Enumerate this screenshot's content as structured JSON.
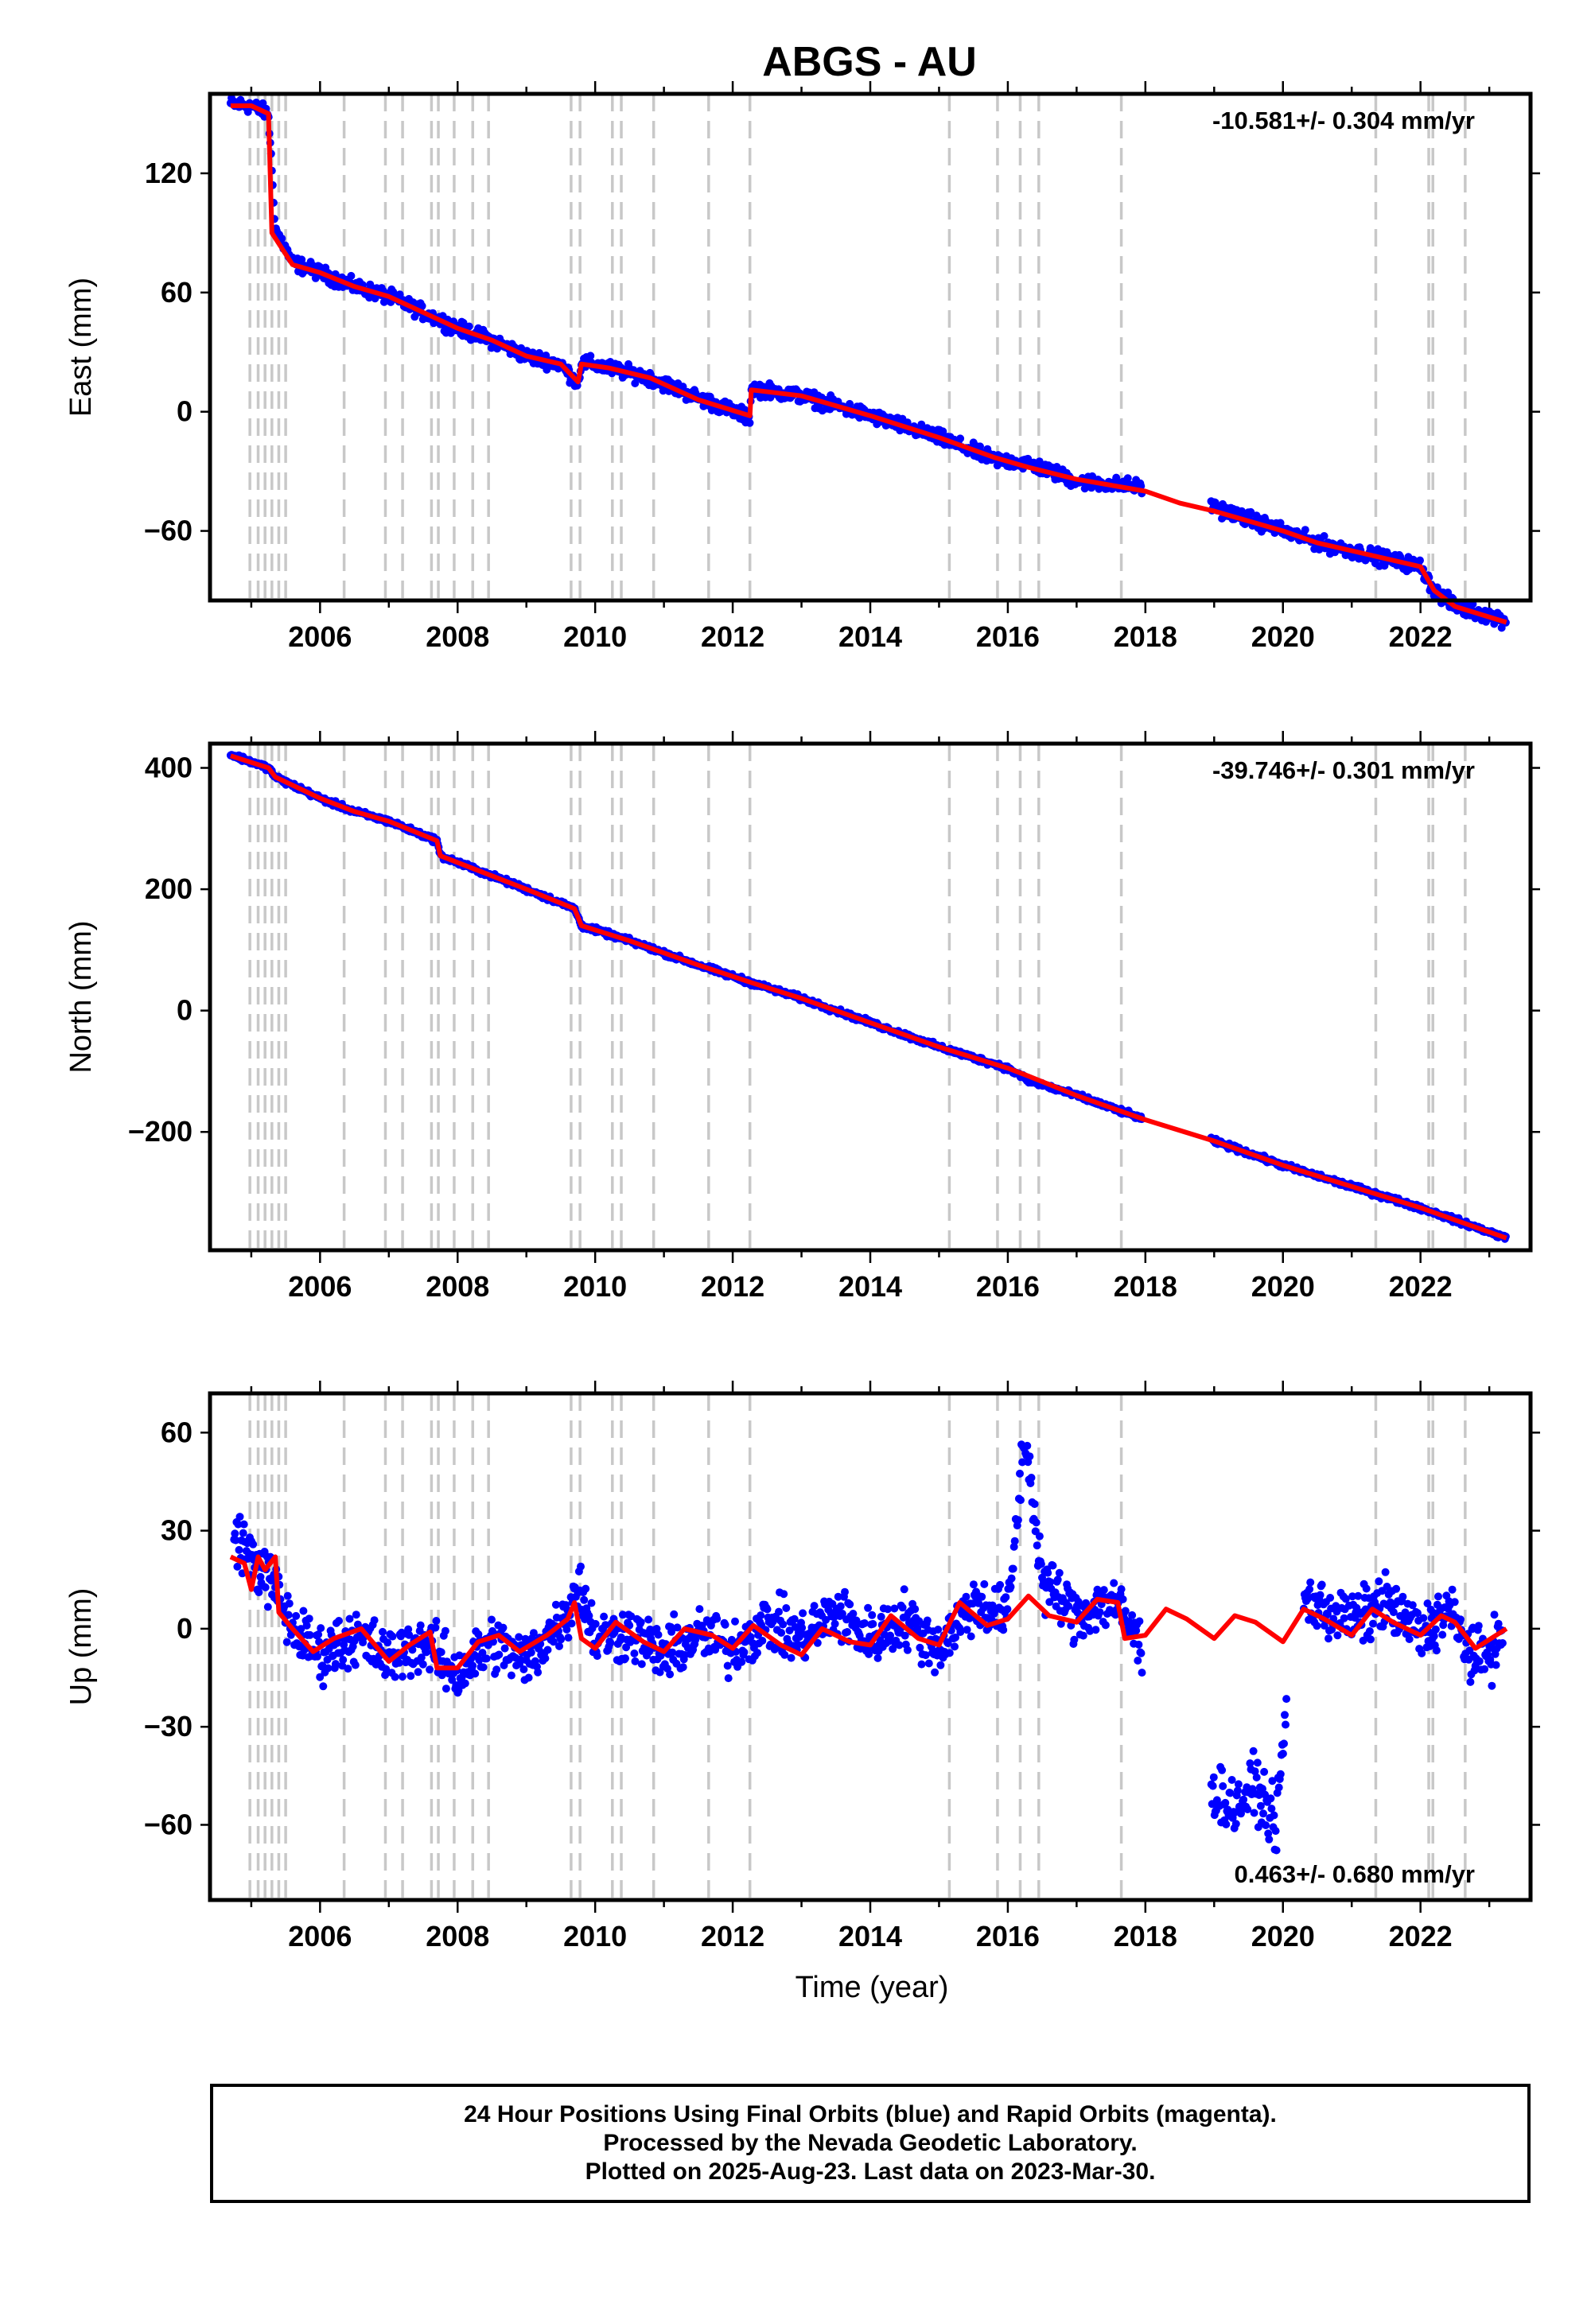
{
  "title": "ABGS - AU",
  "chart_data": [
    {
      "type": "scatter",
      "panel": "east",
      "ylabel": "East (mm)",
      "xlabel": "",
      "xlim": [
        2004.4,
        2023.6
      ],
      "ylim": [
        -95,
        160
      ],
      "yticks": [
        120,
        60,
        0,
        -60
      ],
      "xticks": [
        2006,
        2008,
        2010,
        2012,
        2014,
        2016,
        2018,
        2020,
        2022
      ],
      "rate_label": "-10.581+/- 0.304 mm/yr",
      "rate_position": "top-right",
      "series": [
        {
          "name": "daily positions",
          "color": "#0000ff",
          "x": [
            2004.7,
            2005.0,
            2005.25,
            2005.35,
            2005.6,
            2006.0,
            2006.5,
            2007.0,
            2007.5,
            2008.0,
            2008.5,
            2009.0,
            2009.5,
            2009.75,
            2009.8,
            2010.2,
            2010.8,
            2011.5,
            2012.25,
            2012.27,
            2013.0,
            2014.0,
            2015.0,
            2015.8,
            2016.3,
            2017.0,
            2018.0,
            2019.0,
            2020.0,
            2020.5,
            2021.0,
            2022.0,
            2022.2,
            2022.5,
            2023.25
          ],
          "y": [
            155,
            154,
            150,
            92,
            75,
            70,
            63,
            58,
            50,
            42,
            36,
            28,
            24,
            14,
            25,
            22,
            17,
            7,
            -3,
            12,
            8,
            -2,
            -13,
            -24,
            -26,
            -35,
            -38,
            -48,
            -60,
            -66,
            -70,
            -78,
            -90,
            -98,
            -105
          ]
        },
        {
          "name": "model",
          "color": "#ff0000",
          "x": [
            2004.7,
            2005.0,
            2005.25,
            2005.3,
            2005.6,
            2006.0,
            2006.5,
            2007.0,
            2007.5,
            2008.0,
            2008.5,
            2009.0,
            2009.5,
            2009.75,
            2009.8,
            2010.2,
            2010.8,
            2011.5,
            2012.25,
            2012.27,
            2013.0,
            2014.0,
            2015.0,
            2015.8,
            2016.3,
            2017.0,
            2018.0,
            2018.5,
            2019.0,
            2020.0,
            2020.5,
            2021.0,
            2022.0,
            2022.2,
            2022.5,
            2023.25
          ],
          "y": [
            154,
            154,
            150,
            90,
            74,
            70,
            63,
            58,
            50,
            42,
            36,
            28,
            24,
            15,
            24,
            22,
            17,
            6,
            -2,
            11,
            8,
            -2,
            -13,
            -23,
            -28,
            -34,
            -40,
            -46,
            -50,
            -60,
            -66,
            -70,
            -78,
            -90,
            -98,
            -106
          ]
        }
      ]
    },
    {
      "type": "scatter",
      "panel": "north",
      "ylabel": "North (mm)",
      "xlabel": "",
      "xlim": [
        2004.4,
        2023.6
      ],
      "ylim": [
        -395,
        440
      ],
      "yticks": [
        400,
        200,
        0,
        -200
      ],
      "xticks": [
        2006,
        2008,
        2010,
        2012,
        2014,
        2016,
        2018,
        2020,
        2022
      ],
      "rate_label": "-39.746+/- 0.301 mm/yr",
      "rate_position": "top-right",
      "series": [
        {
          "name": "daily positions",
          "color": "#0000ff",
          "x": [
            2004.7,
            2005.25,
            2005.35,
            2006.0,
            2006.5,
            2007.0,
            2007.7,
            2007.75,
            2008.5,
            2009.0,
            2009.7,
            2009.8,
            2010.5,
            2011.5,
            2012.3,
            2013.0,
            2014.0,
            2015.0,
            2016.0,
            2016.3,
            2017.0,
            2018.0,
            2019.0,
            2020.0,
            2021.0,
            2022.0,
            2022.5,
            2023.25
          ],
          "y": [
            422,
            400,
            385,
            350,
            328,
            312,
            280,
            255,
            222,
            200,
            168,
            140,
            115,
            75,
            45,
            20,
            -20,
            -60,
            -95,
            -115,
            -140,
            -180,
            -215,
            -255,
            -290,
            -325,
            -345,
            -375
          ]
        },
        {
          "name": "model",
          "color": "#ff0000",
          "x": [
            2004.7,
            2005.25,
            2005.35,
            2006.0,
            2006.5,
            2007.0,
            2007.7,
            2007.75,
            2008.5,
            2009.0,
            2009.7,
            2009.8,
            2010.5,
            2011.5,
            2012.3,
            2013.0,
            2014.0,
            2015.0,
            2016.0,
            2016.3,
            2017.0,
            2018.0,
            2019.0,
            2020.0,
            2021.0,
            2022.0,
            2022.5,
            2023.25
          ],
          "y": [
            420,
            400,
            385,
            350,
            328,
            312,
            280,
            255,
            222,
            200,
            168,
            140,
            115,
            75,
            45,
            20,
            -20,
            -60,
            -95,
            -108,
            -140,
            -180,
            -215,
            -255,
            -290,
            -325,
            -345,
            -375
          ]
        }
      ]
    },
    {
      "type": "scatter",
      "panel": "up",
      "ylabel": "Up (mm)",
      "xlabel": "Time (year)",
      "xlim": [
        2004.4,
        2023.6
      ],
      "ylim": [
        -83,
        72
      ],
      "yticks": [
        60,
        30,
        0,
        -30,
        -60
      ],
      "xticks": [
        2006,
        2008,
        2010,
        2012,
        2014,
        2016,
        2018,
        2020,
        2022
      ],
      "rate_label": "0.463+/- 0.680 mm/yr",
      "rate_position": "bottom-right",
      "series": [
        {
          "name": "daily positions",
          "color": "#0000ff",
          "x": [
            2004.75,
            2005.0,
            2005.3,
            2005.6,
            2006.0,
            2006.5,
            2007.0,
            2007.5,
            2008.0,
            2008.5,
            2009.0,
            2009.6,
            2009.75,
            2010.0,
            2010.5,
            2011.0,
            2011.5,
            2012.0,
            2012.5,
            2013.0,
            2013.5,
            2014.0,
            2014.5,
            2015.0,
            2015.5,
            2016.0,
            2016.25,
            2016.5,
            2017.0,
            2017.5,
            2017.8,
            2019.0,
            2019.3,
            2019.6,
            2019.9,
            2020.2,
            2020.6,
            2021.0,
            2021.5,
            2022.0,
            2022.4,
            2022.8,
            2023.2
          ],
          "y": [
            30,
            22,
            14,
            0,
            -8,
            -2,
            -9,
            -4,
            -14,
            -4,
            -10,
            5,
            15,
            -3,
            -1,
            -8,
            -2,
            -6,
            2,
            -3,
            5,
            -3,
            3,
            -6,
            8,
            4,
            60,
            15,
            4,
            9,
            0,
            -50,
            -55,
            -48,
            -60,
            10,
            6,
            2,
            8,
            -2,
            6,
            -10,
            -3
          ]
        },
        {
          "name": "model",
          "color": "#ff0000",
          "x": [
            2004.7,
            2004.9,
            2005.0,
            2005.1,
            2005.2,
            2005.35,
            2005.4,
            2005.6,
            2005.9,
            2006.2,
            2006.6,
            2007.0,
            2007.3,
            2007.6,
            2007.7,
            2008.0,
            2008.3,
            2008.6,
            2008.9,
            2009.3,
            2009.6,
            2009.7,
            2009.8,
            2010.0,
            2010.3,
            2010.7,
            2011.0,
            2011.3,
            2011.7,
            2012.0,
            2012.3,
            2012.7,
            2013.0,
            2013.3,
            2013.7,
            2014.0,
            2014.3,
            2014.7,
            2015.0,
            2015.3,
            2015.7,
            2016.0,
            2016.3,
            2016.6,
            2017.0,
            2017.3,
            2017.6,
            2017.7,
            2018.0,
            2018.3,
            2018.6,
            2019.0,
            2019.3,
            2019.6,
            2020.0,
            2020.3,
            2020.6,
            2021.0,
            2021.3,
            2021.6,
            2022.0,
            2022.2,
            2022.3,
            2022.5,
            2022.8,
            2023.25
          ],
          "y": [
            22,
            20,
            12,
            22,
            18,
            22,
            5,
            0,
            -7,
            -3,
            0,
            -10,
            -5,
            -1,
            -12,
            -12,
            -4,
            -2,
            -7,
            -2,
            3,
            8,
            -3,
            -6,
            2,
            -4,
            -7,
            0,
            -2,
            -6,
            1,
            -5,
            -8,
            0,
            -4,
            -5,
            4,
            -3,
            -5,
            8,
            1,
            3,
            10,
            4,
            2,
            9,
            8,
            -3,
            -2,
            6,
            3,
            -3,
            4,
            2,
            -4,
            6,
            3,
            -2,
            6,
            2,
            -2,
            2,
            4,
            2,
            -6,
            0
          ]
        }
      ]
    }
  ],
  "vlines": [
    2004.98,
    2005.1,
    2005.2,
    2005.3,
    2005.4,
    2005.5,
    2006.35,
    2006.95,
    2007.2,
    2007.62,
    2007.72,
    2007.95,
    2008.22,
    2008.45,
    2009.65,
    2009.78,
    2010.25,
    2010.38,
    2010.85,
    2011.65,
    2012.25,
    2015.15,
    2015.85,
    2016.18,
    2016.45,
    2017.65,
    2021.35,
    2022.12,
    2022.18,
    2022.65
  ],
  "footer": {
    "line1": "24 Hour Positions Using Final Orbits (blue) and Rapid Orbits (magenta).",
    "line2": "Processed by the Nevada Geodetic Laboratory.",
    "line3": "Plotted on 2025-Aug-23. Last data on 2023-Mar-30."
  }
}
